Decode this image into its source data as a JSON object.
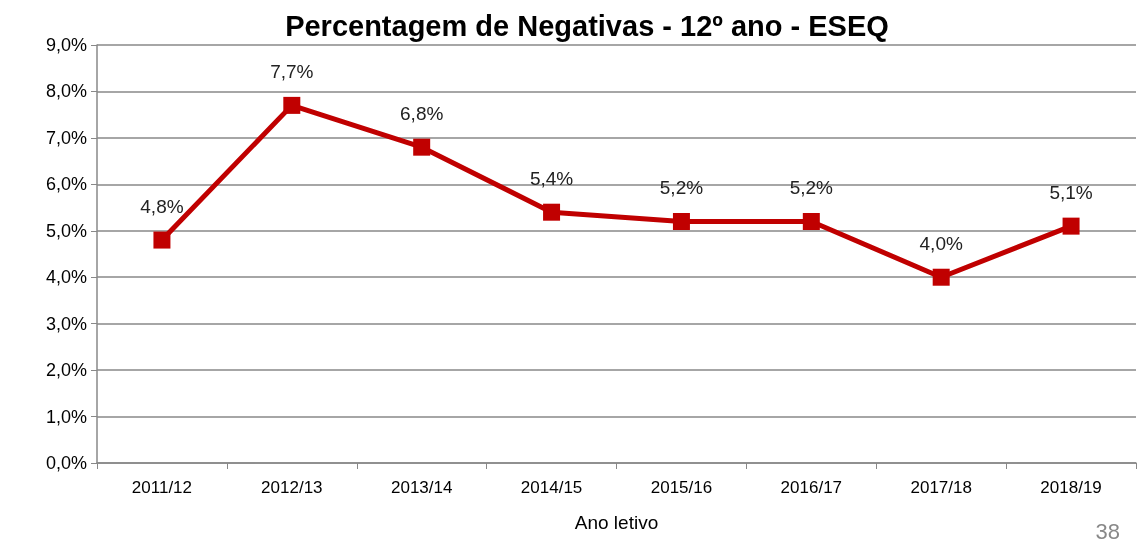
{
  "chart_data": {
    "type": "line",
    "title": "Percentagem de Negativas - 12º ano - ESEQ",
    "xlabel": "Ano letivo",
    "categories": [
      "2011/12",
      "2012/13",
      "2013/14",
      "2014/15",
      "2015/16",
      "2016/17",
      "2017/18",
      "2018/19"
    ],
    "series": [
      {
        "color": "#c00000",
        "values": [
          4.8,
          7.7,
          6.8,
          5.4,
          5.2,
          5.2,
          4.0,
          5.1
        ],
        "value_labels": [
          "4,8%",
          "7,7%",
          "6,8%",
          "5,4%",
          "5,2%",
          "5,2%",
          "4,0%",
          "5,1%"
        ]
      }
    ],
    "ylim": [
      0,
      9
    ],
    "yticks": [
      {
        "value": 0,
        "label": "0,0%"
      },
      {
        "value": 1,
        "label": "1,0%"
      },
      {
        "value": 2,
        "label": "2,0%"
      },
      {
        "value": 3,
        "label": "3,0%"
      },
      {
        "value": 4,
        "label": "4,0%"
      },
      {
        "value": 5,
        "label": "5,0%"
      },
      {
        "value": 6,
        "label": "6,0%"
      },
      {
        "value": 7,
        "label": "7,0%"
      },
      {
        "value": 8,
        "label": "8,0%"
      },
      {
        "value": 9,
        "label": "9,0%"
      }
    ],
    "grid": "y",
    "marker": "square",
    "line_style": "solid",
    "annotations": [
      "38"
    ]
  }
}
